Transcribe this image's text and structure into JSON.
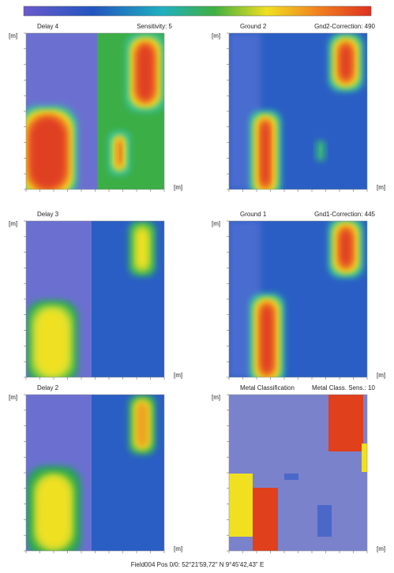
{
  "axis_unit": "[m]",
  "panels": [
    {
      "title": "Delay 4",
      "setting": "Sensitivity: 5"
    },
    {
      "title": "Ground 2",
      "setting": "Gnd2-Correction: 490"
    },
    {
      "title": "Delay 3",
      "setting": ""
    },
    {
      "title": "Ground 1",
      "setting": "Gnd1-Correction: 445"
    },
    {
      "title": "Delay 2",
      "setting": ""
    },
    {
      "title": "Metal Classification",
      "setting": "Metal Class. Sens.: 10"
    }
  ],
  "footer": "Field004 Pos 0/0: 52°21'59,72\" N 9°45'42,43\" E"
}
